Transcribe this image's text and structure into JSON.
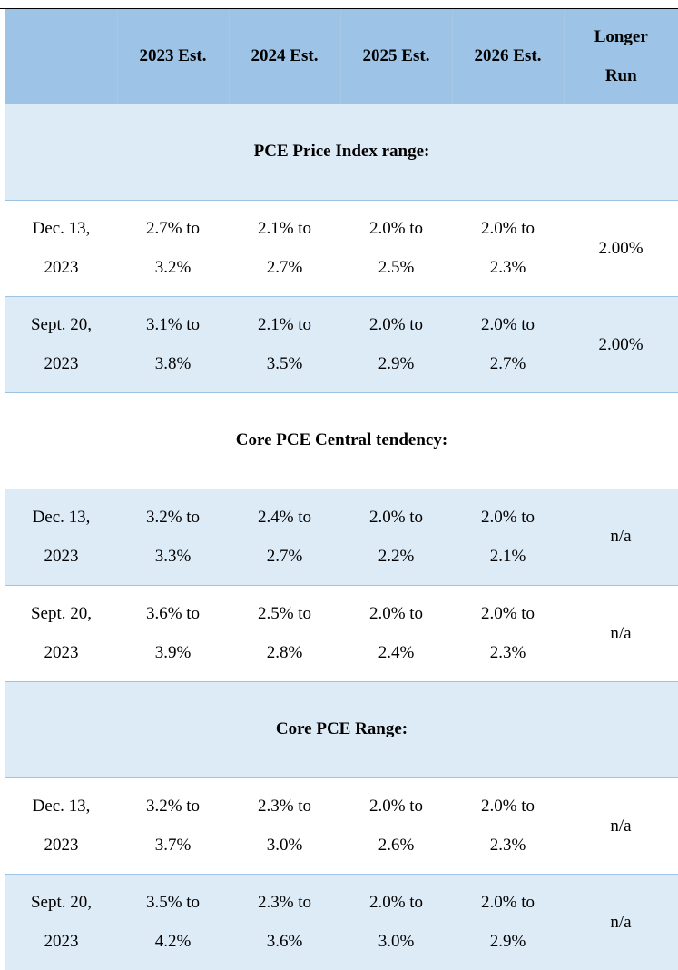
{
  "table": {
    "header": {
      "blank": "",
      "col_2023": "2023 Est.",
      "col_2024": "2024 Est.",
      "col_2025": "2025 Est.",
      "col_2026": "2026 Est.",
      "col_longer_1": "Longer",
      "col_longer_2": "Run"
    },
    "sections": [
      {
        "title": "PCE Price Index range:",
        "rows": [
          {
            "date_1": "Dec. 13,",
            "date_2": "2023",
            "y2023_1": "2.7% to",
            "y2023_2": "3.2%",
            "y2024_1": "2.1% to",
            "y2024_2": "2.7%",
            "y2025_1": "2.0% to",
            "y2025_2": "2.5%",
            "y2026_1": "2.0% to",
            "y2026_2": "2.3%",
            "longer": "2.00%"
          },
          {
            "date_1": "Sept. 20,",
            "date_2": "2023",
            "y2023_1": "3.1% to",
            "y2023_2": "3.8%",
            "y2024_1": "2.1% to",
            "y2024_2": "3.5%",
            "y2025_1": "2.0% to",
            "y2025_2": "2.9%",
            "y2026_1": "2.0% to",
            "y2026_2": "2.7%",
            "longer": "2.00%"
          }
        ]
      },
      {
        "title": "Core PCE Central tendency:",
        "rows": [
          {
            "date_1": "Dec. 13,",
            "date_2": "2023",
            "y2023_1": "3.2% to",
            "y2023_2": "3.3%",
            "y2024_1": "2.4% to",
            "y2024_2": "2.7%",
            "y2025_1": "2.0% to",
            "y2025_2": "2.2%",
            "y2026_1": "2.0% to",
            "y2026_2": "2.1%",
            "longer": "n/a"
          },
          {
            "date_1": "Sept. 20,",
            "date_2": "2023",
            "y2023_1": "3.6% to",
            "y2023_2": "3.9%",
            "y2024_1": "2.5% to",
            "y2024_2": "2.8%",
            "y2025_1": "2.0% to",
            "y2025_2": "2.4%",
            "y2026_1": "2.0% to",
            "y2026_2": "2.3%",
            "longer": "n/a"
          }
        ]
      },
      {
        "title": "Core PCE Range:",
        "rows": [
          {
            "date_1": "Dec. 13,",
            "date_2": "2023",
            "y2023_1": "3.2% to",
            "y2023_2": "3.7%",
            "y2024_1": "2.3% to",
            "y2024_2": "3.0%",
            "y2025_1": "2.0% to",
            "y2025_2": "2.6%",
            "y2026_1": "2.0% to",
            "y2026_2": "2.3%",
            "longer": "n/a"
          },
          {
            "date_1": "Sept. 20,",
            "date_2": "2023",
            "y2023_1": "3.5% to",
            "y2023_2": "4.2%",
            "y2024_1": "2.3% to",
            "y2024_2": "3.6%",
            "y2025_1": "2.0% to",
            "y2025_2": "3.0%",
            "y2026_1": "2.0% to",
            "y2026_2": "2.9%",
            "longer": "n/a"
          }
        ]
      }
    ]
  }
}
